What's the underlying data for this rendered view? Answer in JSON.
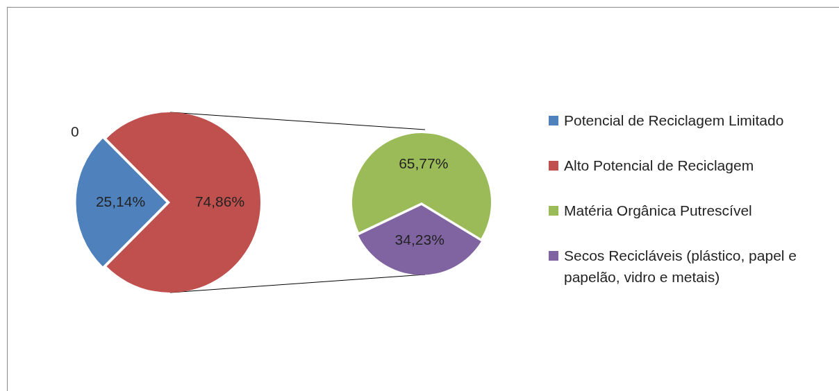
{
  "chart_data": [
    {
      "type": "pie",
      "categories": [
        "Potencial de Reciclagem Limitado",
        "Alto Potencial de Reciclagem"
      ],
      "values": [
        25.14,
        74.86
      ],
      "colors": [
        "#4f81bd",
        "#c0504d"
      ],
      "value_labels": [
        "25,14%",
        "74,86%"
      ],
      "legend": "right",
      "annotations": [
        "0"
      ]
    },
    {
      "type": "pie",
      "categories": [
        "Matéria Orgânica Putrescível",
        "Secos Recicláveis (plástico, papel e papelão, vidro e metais)"
      ],
      "values": [
        65.77,
        34.23
      ],
      "colors": [
        "#9bbb59",
        "#8064a2"
      ],
      "value_labels": [
        "65,77%",
        "34,23%"
      ],
      "legend": "right"
    }
  ]
}
